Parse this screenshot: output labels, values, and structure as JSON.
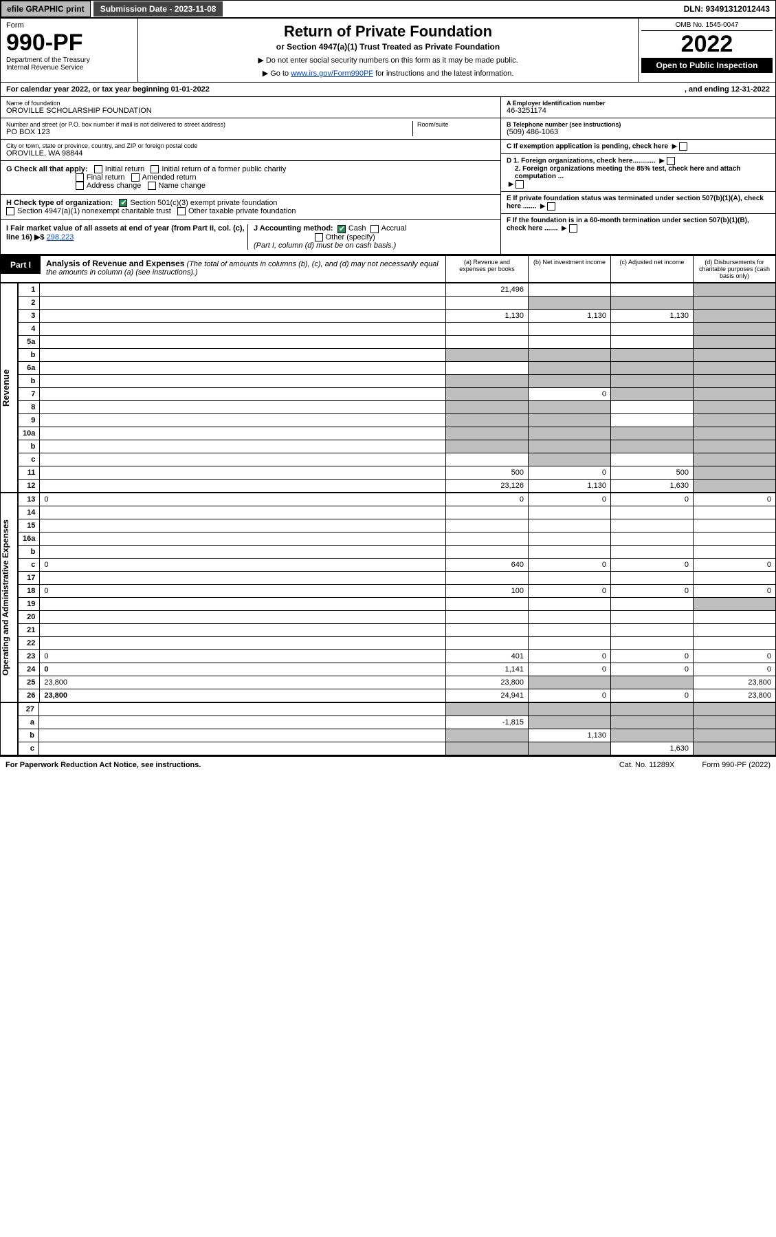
{
  "topbar": {
    "efile": "efile GRAPHIC print",
    "submission_label": "Submission Date - 2023-11-08",
    "dln": "DLN: 93491312012443"
  },
  "header": {
    "form_word": "Form",
    "form_no": "990-PF",
    "dept1": "Department of the Treasury",
    "dept2": "Internal Revenue Service",
    "title": "Return of Private Foundation",
    "subtitle": "or Section 4947(a)(1) Trust Treated as Private Foundation",
    "note1": "▶ Do not enter social security numbers on this form as it may be made public.",
    "note2_pre": "▶ Go to ",
    "note2_link": "www.irs.gov/Form990PF",
    "note2_post": " for instructions and the latest information.",
    "omb": "OMB No. 1545-0047",
    "year": "2022",
    "open": "Open to Public Inspection"
  },
  "cal": {
    "text_l": "For calendar year 2022, or tax year beginning 01-01-2022",
    "text_r": ", and ending 12-31-2022"
  },
  "id": {
    "name_label": "Name of foundation",
    "name": "OROVILLE SCHOLARSHIP FOUNDATION",
    "addr_label": "Number and street (or P.O. box number if mail is not delivered to street address)",
    "addr": "PO BOX 123",
    "room_label": "Room/suite",
    "city_label": "City or town, state or province, country, and ZIP or foreign postal code",
    "city": "OROVILLE, WA  98844",
    "ein_label": "A Employer identification number",
    "ein": "46-3251174",
    "phone_label": "B Telephone number (see instructions)",
    "phone": "(509) 486-1063",
    "c_label": "C If exemption application is pending, check here",
    "d1": "D 1. Foreign organizations, check here............",
    "d2": "2. Foreign organizations meeting the 85% test, check here and attach computation ...",
    "e": "E  If private foundation status was terminated under section 507(b)(1)(A), check here .......",
    "f": "F  If the foundation is in a 60-month termination under section 507(b)(1)(B), check here .......",
    "g_lead": "G Check all that apply:",
    "g_initial": "Initial return",
    "g_initial_former": "Initial return of a former public charity",
    "g_final": "Final return",
    "g_amended": "Amended return",
    "g_address": "Address change",
    "g_name": "Name change",
    "h_lead": "H Check type of organization:",
    "h_501c3": "Section 501(c)(3) exempt private foundation",
    "h_4947": "Section 4947(a)(1) nonexempt charitable trust",
    "h_other": "Other taxable private foundation",
    "i_lead": "I Fair market value of all assets at end of year (from Part II, col. (c), line 16)",
    "i_arrow": "▶$",
    "i_val": "298,223",
    "j_lead": "J Accounting method:",
    "j_cash": "Cash",
    "j_accrual": "Accrual",
    "j_other": "Other (specify)",
    "j_note": "(Part I, column (d) must be on cash basis.)"
  },
  "part1": {
    "tag": "Part I",
    "title": "Analysis of Revenue and Expenses",
    "title_note": "(The total of amounts in columns (b), (c), and (d) may not necessarily equal the amounts in column (a) (see instructions).)",
    "col_a": "(a)  Revenue and expenses per books",
    "col_b": "(b)  Net investment income",
    "col_c": "(c)  Adjusted net income",
    "col_d": "(d)  Disbursements for charitable purposes (cash basis only)"
  },
  "sides": {
    "revenue": "Revenue",
    "opexp": "Operating and Administrative Expenses"
  },
  "rows": {
    "r1": {
      "n": "1",
      "d": "",
      "a": "21,496",
      "b": "",
      "c": "",
      "bg": false,
      "cg": false,
      "dg": true
    },
    "r2": {
      "n": "2",
      "d": "",
      "a": "",
      "b": "",
      "c": "",
      "bg": true,
      "cg": true,
      "dg": true
    },
    "r3": {
      "n": "3",
      "d": "",
      "a": "1,130",
      "b": "1,130",
      "c": "1,130",
      "dg": true
    },
    "r4": {
      "n": "4",
      "d": "",
      "a": "",
      "b": "",
      "c": "",
      "dg": true
    },
    "r5a": {
      "n": "5a",
      "d": "",
      "a": "",
      "b": "",
      "c": "",
      "dg": true
    },
    "r5b": {
      "n": "b",
      "d": "",
      "a": "",
      "b": "",
      "c": "",
      "ag": true,
      "bg": true,
      "cg": true,
      "dg": true
    },
    "r6a": {
      "n": "6a",
      "d": "",
      "a": "",
      "b": "",
      "c": "",
      "bg": true,
      "cg": true,
      "dg": true
    },
    "r6b": {
      "n": "b",
      "d": "",
      "a": "",
      "b": "",
      "c": "",
      "ag": true,
      "bg": true,
      "cg": true,
      "dg": true
    },
    "r7": {
      "n": "7",
      "d": "",
      "a": "",
      "b": "0",
      "c": "",
      "ag": true,
      "cg": true,
      "dg": true
    },
    "r8": {
      "n": "8",
      "d": "",
      "a": "",
      "b": "",
      "c": "",
      "ag": true,
      "bg": true,
      "dg": true
    },
    "r9": {
      "n": "9",
      "d": "",
      "a": "",
      "b": "",
      "c": "",
      "ag": true,
      "bg": true,
      "dg": true
    },
    "r10a": {
      "n": "10a",
      "d": "",
      "a": "",
      "b": "",
      "c": "",
      "ag": true,
      "bg": true,
      "cg": true,
      "dg": true
    },
    "r10b": {
      "n": "b",
      "d": "",
      "a": "",
      "b": "",
      "c": "",
      "ag": true,
      "bg": true,
      "cg": true,
      "dg": true
    },
    "r10c": {
      "n": "c",
      "d": "",
      "a": "",
      "b": "",
      "c": "",
      "bg": true,
      "dg": true
    },
    "r11": {
      "n": "11",
      "d": "",
      "a": "500",
      "b": "0",
      "c": "500",
      "dg": true
    },
    "r12": {
      "n": "12",
      "d": "",
      "a": "23,126",
      "b": "1,130",
      "c": "1,630",
      "dg": true,
      "bold": true
    },
    "r13": {
      "n": "13",
      "d": "0",
      "a": "0",
      "b": "0",
      "c": "0"
    },
    "r14": {
      "n": "14",
      "d": "",
      "a": "",
      "b": "",
      "c": ""
    },
    "r15": {
      "n": "15",
      "d": "",
      "a": "",
      "b": "",
      "c": ""
    },
    "r16a": {
      "n": "16a",
      "d": "",
      "a": "",
      "b": "",
      "c": ""
    },
    "r16b": {
      "n": "b",
      "d": "",
      "a": "",
      "b": "",
      "c": ""
    },
    "r16c": {
      "n": "c",
      "d": "0",
      "a": "640",
      "b": "0",
      "c": "0"
    },
    "r17": {
      "n": "17",
      "d": "",
      "a": "",
      "b": "",
      "c": ""
    },
    "r18": {
      "n": "18",
      "d": "0",
      "a": "100",
      "b": "0",
      "c": "0"
    },
    "r19": {
      "n": "19",
      "d": "",
      "a": "",
      "b": "",
      "c": "",
      "dg": true
    },
    "r20": {
      "n": "20",
      "d": "",
      "a": "",
      "b": "",
      "c": ""
    },
    "r21": {
      "n": "21",
      "d": "",
      "a": "",
      "b": "",
      "c": ""
    },
    "r22": {
      "n": "22",
      "d": "",
      "a": "",
      "b": "",
      "c": ""
    },
    "r23": {
      "n": "23",
      "d": "0",
      "a": "401",
      "b": "0",
      "c": "0"
    },
    "r24": {
      "n": "24",
      "d": "0",
      "a": "1,141",
      "b": "0",
      "c": "0",
      "bold": true
    },
    "r25": {
      "n": "25",
      "d": "23,800",
      "a": "23,800",
      "b": "",
      "c": "",
      "bg": true,
      "cg": true
    },
    "r26": {
      "n": "26",
      "d": "23,800",
      "a": "24,941",
      "b": "0",
      "c": "0",
      "bold": true
    },
    "r27": {
      "n": "27",
      "d": "",
      "a": "",
      "b": "",
      "c": "",
      "ag": true,
      "bg": true,
      "cg": true,
      "dg": true
    },
    "r27a": {
      "n": "a",
      "d": "",
      "a": "-1,815",
      "b": "",
      "c": "",
      "bold": true,
      "bg": true,
      "cg": true,
      "dg": true
    },
    "r27b": {
      "n": "b",
      "d": "",
      "a": "",
      "b": "1,130",
      "c": "",
      "bold": true,
      "ag": true,
      "cg": true,
      "dg": true
    },
    "r27c": {
      "n": "c",
      "d": "",
      "a": "",
      "b": "",
      "c": "1,630",
      "bold": true,
      "ag": true,
      "bg": true,
      "dg": true
    }
  },
  "footer": {
    "left": "For Paperwork Reduction Act Notice, see instructions.",
    "mid": "Cat. No. 11289X",
    "right": "Form 990-PF (2022)"
  },
  "colors": {
    "link": "#0645ad",
    "grey": "#bfbfbf",
    "black": "#000000",
    "checkgreen": "#2e8b57",
    "topbtn": "#b8b8b8",
    "topsub": "#444444"
  }
}
